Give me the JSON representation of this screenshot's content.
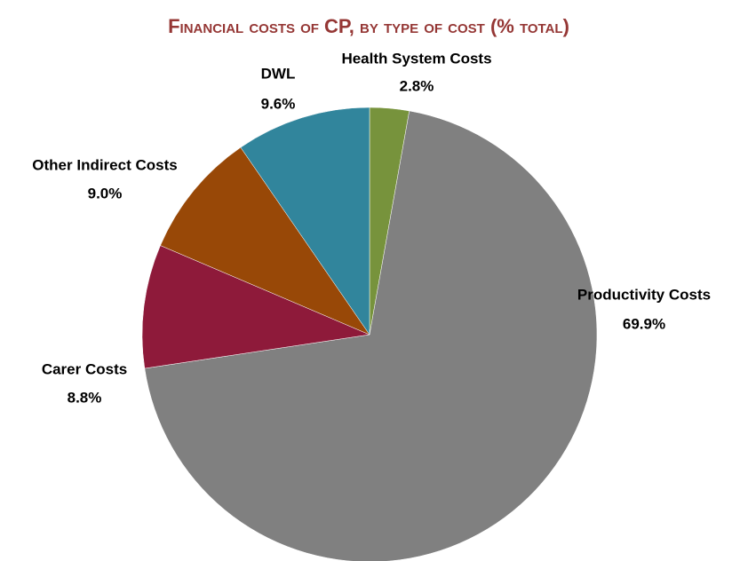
{
  "chart_data": {
    "type": "pie",
    "title": "Financial costs of CP, by type of cost (% total)",
    "categories": [
      "Health System Costs",
      "Productivity Costs",
      "Carer Costs",
      "Other Indirect Costs",
      "DWL"
    ],
    "values": [
      2.8,
      69.9,
      8.8,
      9.0,
      9.6
    ],
    "value_labels": [
      "2.8%",
      "69.9%",
      "8.8%",
      "9.0%",
      "9.6%"
    ],
    "colors": [
      "#77933c",
      "#808080",
      "#8e1a3a",
      "#984807",
      "#31859c"
    ]
  }
}
